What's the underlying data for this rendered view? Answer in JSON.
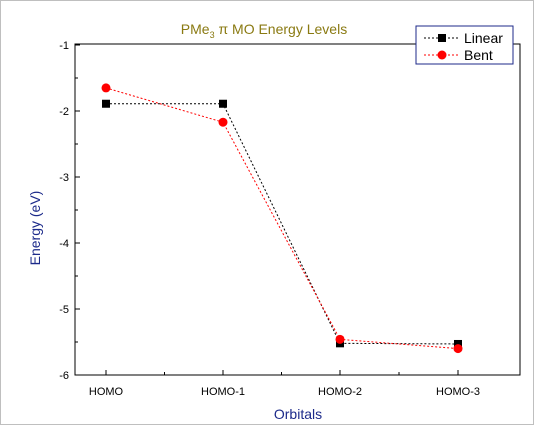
{
  "chart_data": {
    "type": "line",
    "title": {
      "prefix": "PMe",
      "subscript": "3",
      "suffix": " π MO Energy Levels"
    },
    "xlabel": "Orbitals",
    "ylabel": "Energy (eV)",
    "categories": [
      "HOMO",
      "HOMO-1",
      "HOMO-2",
      "HOMO-3"
    ],
    "ylim": [
      -6,
      -1
    ],
    "yticks": [
      "-1",
      "-2",
      "-3",
      "-4",
      "-5",
      "-6"
    ],
    "legend_position": "top-right",
    "grid": false,
    "series": [
      {
        "name": "Linear",
        "values": [
          -1.89,
          -1.89,
          -5.52,
          -5.53
        ],
        "color": "#000000",
        "marker": "square"
      },
      {
        "name": "Bent",
        "values": [
          -1.65,
          -2.17,
          -5.46,
          -5.6
        ],
        "color": "#ff0000",
        "marker": "circle"
      }
    ]
  }
}
